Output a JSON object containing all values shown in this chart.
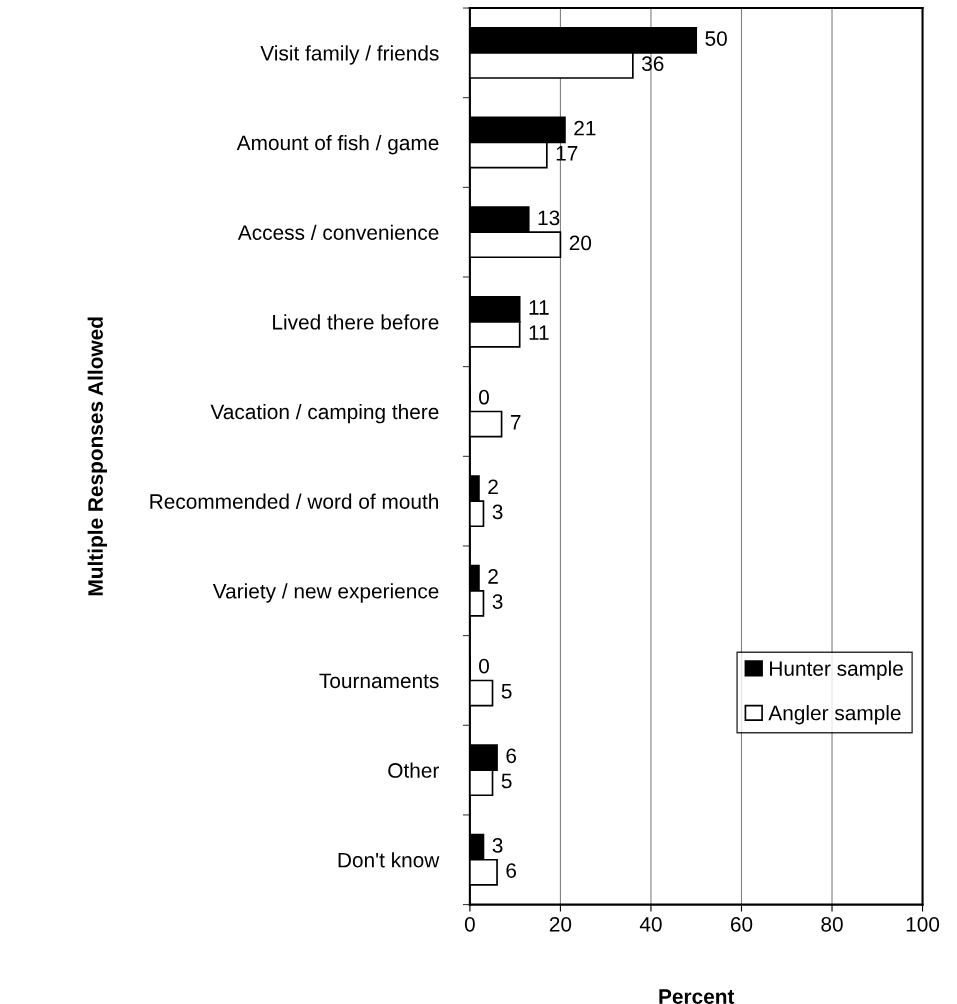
{
  "chart_data": {
    "type": "bar",
    "orientation": "horizontal",
    "categories": [
      "Visit family / friends",
      "Amount of fish / game",
      "Access / convenience",
      "Lived there before",
      "Vacation / camping there",
      "Recommended / word of mouth",
      "Variety / new experience",
      "Tournaments",
      "Other",
      "Don't know"
    ],
    "series": [
      {
        "name": "Hunter sample",
        "color": "#000000",
        "values": [
          50,
          21,
          13,
          11,
          0,
          2,
          2,
          0,
          6,
          3
        ]
      },
      {
        "name": "Angler sample",
        "color": "#ffffff",
        "values": [
          36,
          17,
          20,
          11,
          7,
          3,
          3,
          5,
          5,
          6
        ]
      }
    ],
    "xlabel": "Percent",
    "ylabel": "Multiple Responses Allowed",
    "xlim": [
      0,
      100
    ],
    "xticks": [
      0,
      20,
      40,
      60,
      80,
      100
    ],
    "grid": "x",
    "legend": "bottom right",
    "data_labels": true
  }
}
